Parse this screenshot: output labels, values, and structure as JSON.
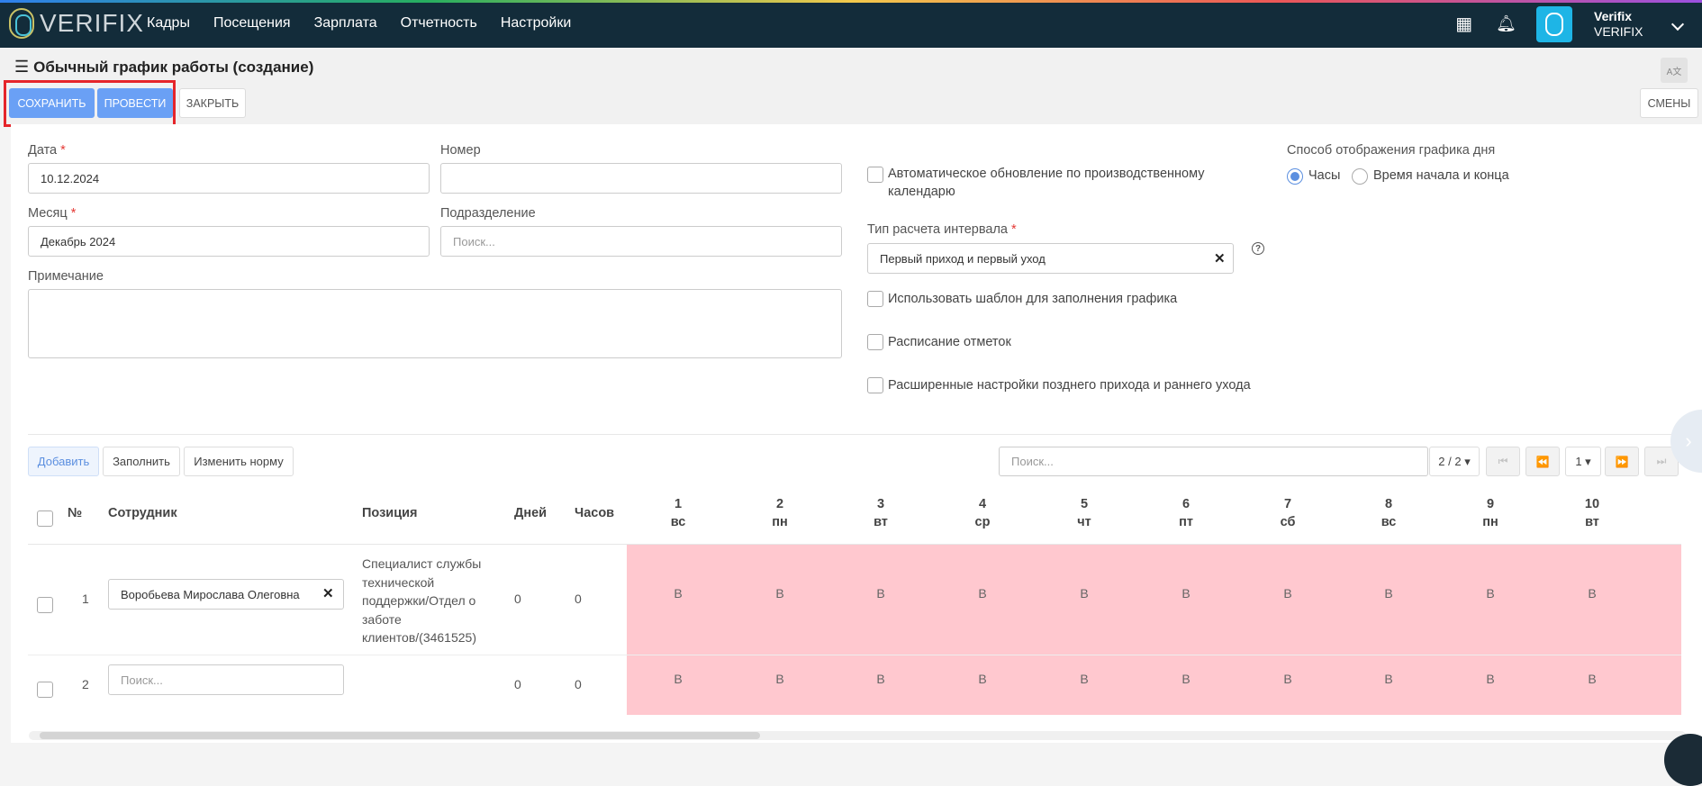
{
  "app": {
    "logo_text": "VERIFIX"
  },
  "nav": {
    "items": [
      "Кадры",
      "Посещения",
      "Зарплата",
      "Отчетность",
      "Настройки"
    ]
  },
  "user": {
    "name": "Verifix",
    "company": "VERIFIX"
  },
  "page": {
    "title": "Обычный график работы (создание)"
  },
  "toolbar": {
    "save": "СОХРАНИТЬ",
    "post": "ПРОВЕСТИ",
    "close": "ЗАКРЫТЬ",
    "shifts": "СМЕНЫ"
  },
  "form": {
    "date_label": "Дата",
    "date_value": "10.12.2024",
    "number_label": "Номер",
    "number_value": "",
    "month_label": "Месяц",
    "month_value": "Декабрь 2024",
    "division_label": "Подразделение",
    "division_placeholder": "Поиск...",
    "note_label": "Примечание",
    "auto_update_label": "Автоматическое обновление по производственному календарю",
    "interval_label": "Тип расчета интервала",
    "interval_value": "Первый приход и первый уход",
    "use_template_label": "Использовать шаблон для заполнения графика",
    "schedule_marks_label": "Расписание отметок",
    "late_early_label": "Расширенные настройки позднего прихода и раннего ухода",
    "display_mode_label": "Способ отображения графика дня",
    "display_hours": "Часы",
    "display_start_end": "Время начала и конца"
  },
  "table_toolbar": {
    "add": "Добавить",
    "fill": "Заполнить",
    "change_norm": "Изменить норму",
    "search_placeholder": "Поиск...",
    "pages": "2 / 2",
    "page_number": "1"
  },
  "table": {
    "headers": {
      "num": "№",
      "employee": "Сотрудник",
      "position": "Позиция",
      "days": "Дней",
      "hours": "Часов"
    },
    "day_headers": [
      {
        "num": "1",
        "dow": "вс"
      },
      {
        "num": "2",
        "dow": "пн"
      },
      {
        "num": "3",
        "dow": "вт"
      },
      {
        "num": "4",
        "dow": "ср"
      },
      {
        "num": "5",
        "dow": "чт"
      },
      {
        "num": "6",
        "dow": "пт"
      },
      {
        "num": "7",
        "dow": "сб"
      },
      {
        "num": "8",
        "dow": "вс"
      },
      {
        "num": "9",
        "dow": "пн"
      },
      {
        "num": "10",
        "dow": "вт"
      }
    ],
    "rows": [
      {
        "num": "1",
        "employee": "Воробьева Мирослава Олеговна",
        "position_lines": [
          "Специалист службы",
          "технической",
          "поддержки/Отдел о",
          "заботе",
          "клиентов/(3461525)"
        ],
        "days": "0",
        "hours": "0",
        "cells": [
          "В",
          "В",
          "В",
          "В",
          "В",
          "В",
          "В",
          "В",
          "В",
          "В"
        ]
      },
      {
        "num": "2",
        "employee_placeholder": "Поиск...",
        "days": "0",
        "hours": "0",
        "cells": [
          "В",
          "В",
          "В",
          "В",
          "В",
          "В",
          "В",
          "В",
          "В",
          "В"
        ]
      }
    ]
  },
  "colors": {
    "topbar": "#132c3a",
    "primary": "#6aa0f5",
    "weekend_cell": "#ffc8cf",
    "highlight": "#e5252a"
  }
}
